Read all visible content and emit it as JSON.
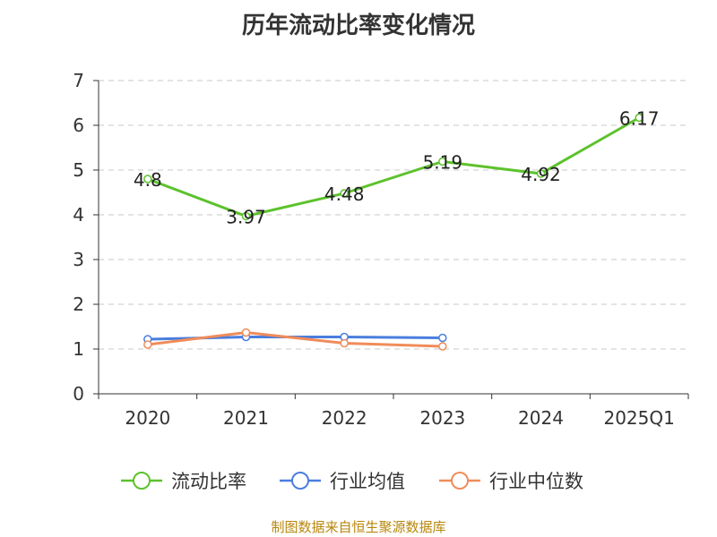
{
  "chart_data": {
    "type": "line",
    "title": "历年流动比率变化情况",
    "categories": [
      "2020",
      "2021",
      "2022",
      "2023",
      "2024",
      "2025Q1"
    ],
    "ylim": [
      0,
      7
    ],
    "yticks": [
      "0",
      "1",
      "2",
      "3",
      "4",
      "5",
      "6",
      "7"
    ],
    "grid": true,
    "legend_position": "bottom",
    "series": [
      {
        "name": "流动比率",
        "color": "#5cc22c",
        "values": [
          4.8,
          3.97,
          4.48,
          5.19,
          4.92,
          6.17
        ],
        "labels": [
          "4.8",
          "3.97",
          "4.48",
          "5.19",
          "4.92",
          "6.17"
        ]
      },
      {
        "name": "行业均值",
        "color": "#4a7ede",
        "values": [
          1.22,
          1.27,
          1.27,
          1.25,
          null,
          null
        ]
      },
      {
        "name": "行业中位数",
        "color": "#f08c5a",
        "values": [
          1.1,
          1.37,
          1.13,
          1.06,
          null,
          null
        ]
      }
    ]
  },
  "footer": {
    "source": "制图数据来自恒生聚源数据库"
  }
}
